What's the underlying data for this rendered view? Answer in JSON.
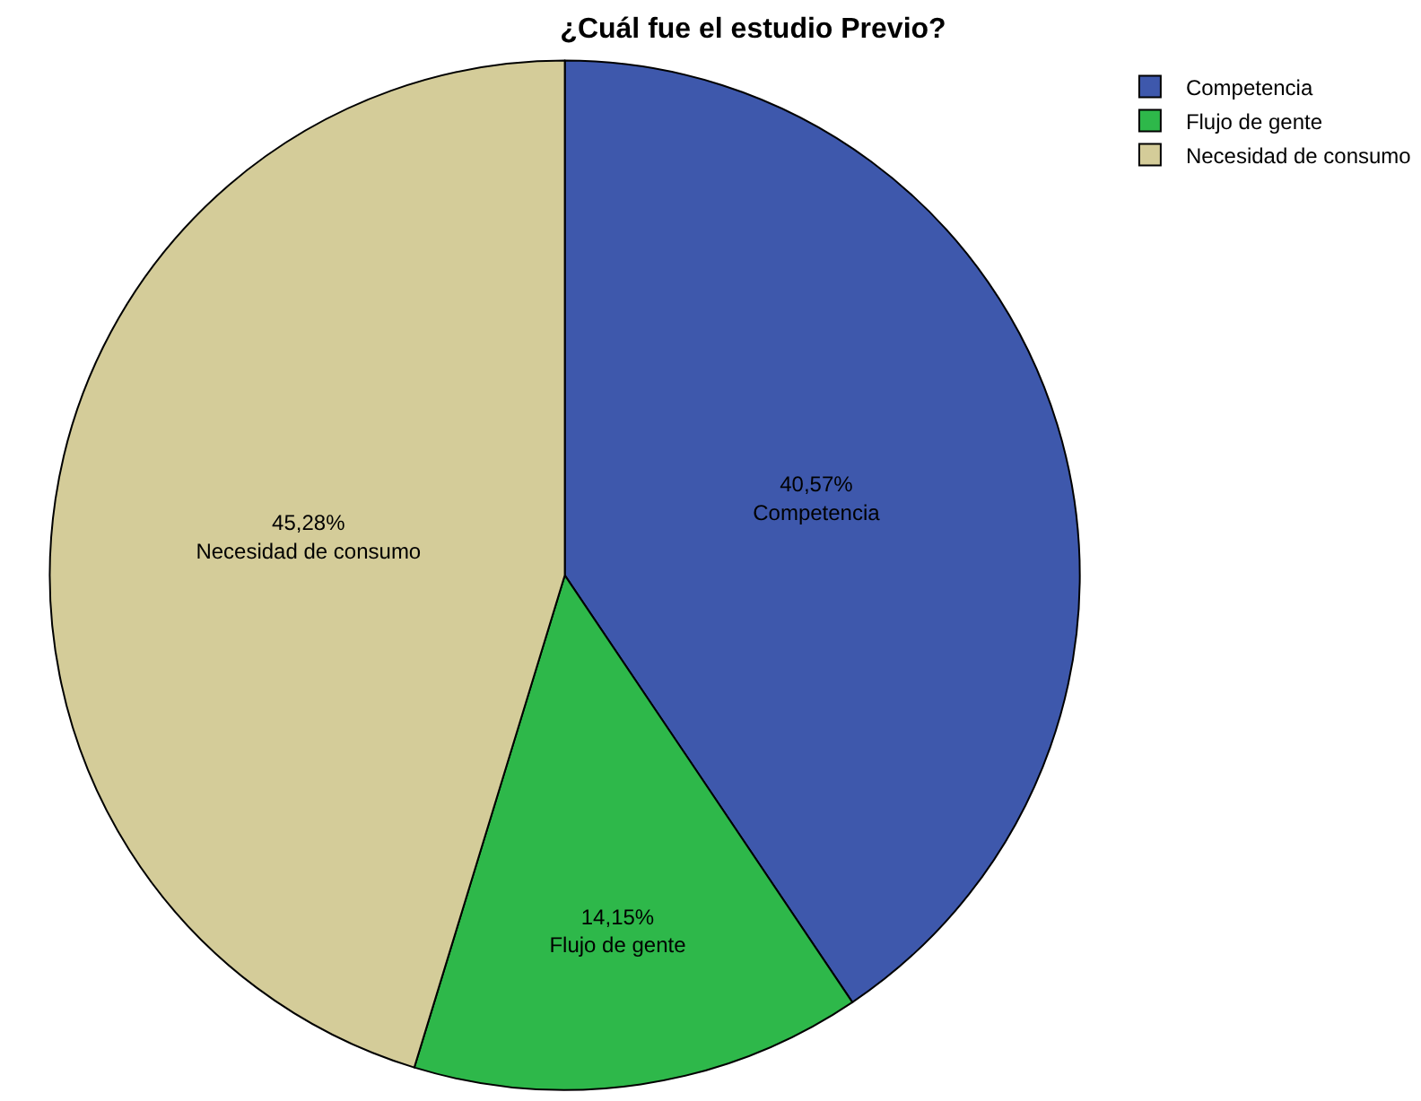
{
  "chart_data": {
    "type": "pie",
    "title": "¿Cuál fue el estudio Previo?",
    "categories": [
      "Competencia",
      "Flujo de gente",
      "Necesidad de consumo"
    ],
    "values": [
      40.57,
      14.15,
      45.28
    ],
    "value_labels": [
      "40,57%",
      "14,15%",
      "45,28%"
    ],
    "colors": [
      "#3e58ac",
      "#2eb84a",
      "#d4cc99"
    ],
    "legend": "top right"
  }
}
